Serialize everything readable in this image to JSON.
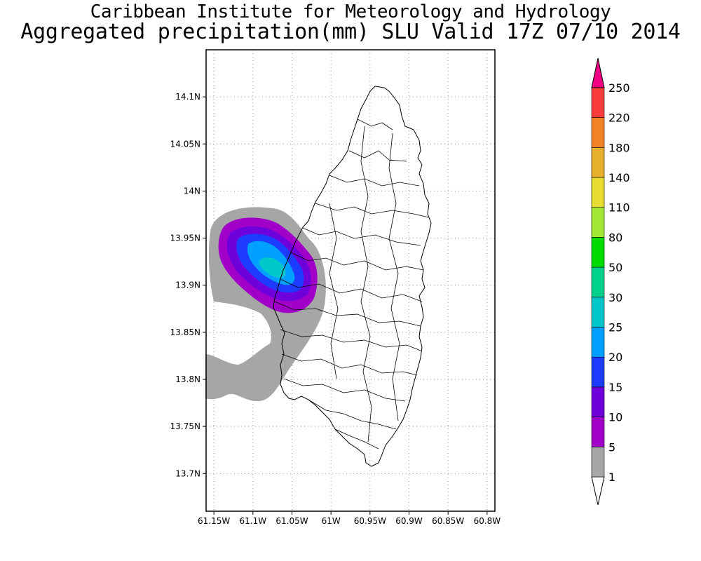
{
  "title": {
    "line1": "Caribbean Institute for Meteorology and Hydrology",
    "line2": "Aggregated precipitation(mm) SLU Valid 17Z 07/10 2014"
  },
  "map": {
    "lat_range": [
      13.66,
      14.15
    ],
    "lon_range": [
      -61.16,
      -60.79
    ],
    "lat_ticks": [
      {
        "value": 13.7,
        "label": "13.7N"
      },
      {
        "value": 13.75,
        "label": "13.75N"
      },
      {
        "value": 13.8,
        "label": "13.8N"
      },
      {
        "value": 13.85,
        "label": "13.85N"
      },
      {
        "value": 13.9,
        "label": "13.9N"
      },
      {
        "value": 13.95,
        "label": "13.95N"
      },
      {
        "value": 14.0,
        "label": "14N"
      },
      {
        "value": 14.05,
        "label": "14.05N"
      },
      {
        "value": 14.1,
        "label": "14.1N"
      }
    ],
    "lon_ticks": [
      {
        "value": -61.15,
        "label": "61.15W"
      },
      {
        "value": -61.1,
        "label": "61.1W"
      },
      {
        "value": -61.05,
        "label": "61.05W"
      },
      {
        "value": -61.0,
        "label": "61W"
      },
      {
        "value": -60.95,
        "label": "60.95W"
      },
      {
        "value": -60.9,
        "label": "60.9W"
      },
      {
        "value": -60.85,
        "label": "60.85W"
      },
      {
        "value": -60.8,
        "label": "60.8W"
      }
    ],
    "grid": "dotted",
    "region": "Saint Lucia"
  },
  "colorbar": {
    "levels": [
      {
        "label": "1",
        "color": "#ffffff"
      },
      {
        "label": "5",
        "color": "#a6a6a6"
      },
      {
        "label": "10",
        "color": "#a000c8"
      },
      {
        "label": "15",
        "color": "#6e00dc"
      },
      {
        "label": "20",
        "color": "#1e3cff"
      },
      {
        "label": "25",
        "color": "#00a0ff"
      },
      {
        "label": "30",
        "color": "#00c8c8"
      },
      {
        "label": "50",
        "color": "#00d28c"
      },
      {
        "label": "80",
        "color": "#00dc00"
      },
      {
        "label": "110",
        "color": "#a0e632"
      },
      {
        "label": "140",
        "color": "#e6dc32"
      },
      {
        "label": "180",
        "color": "#e6af2d"
      },
      {
        "label": "220",
        "color": "#f08228"
      },
      {
        "label": "250",
        "color": "#fa3c3c"
      }
    ],
    "top_color": "#f00082"
  }
}
